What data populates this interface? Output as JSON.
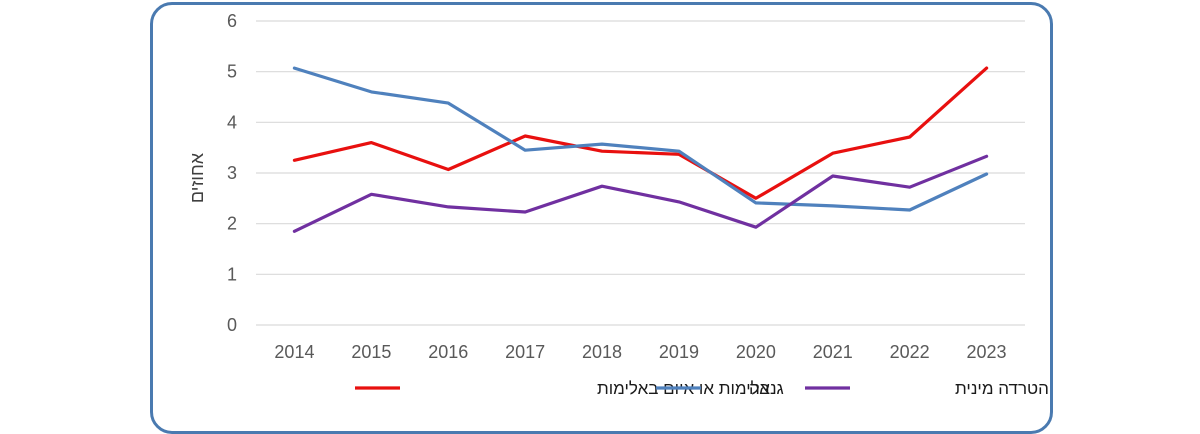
{
  "chart_data": {
    "type": "line",
    "categories": [
      "2014",
      "2015",
      "2016",
      "2017",
      "2018",
      "2019",
      "2020",
      "2021",
      "2022",
      "2023"
    ],
    "ylabel": "אחוזים",
    "xlabel": "",
    "ylim": [
      0,
      6
    ],
    "yticks": [
      "0",
      "1",
      "2",
      "3",
      "4",
      "5",
      "6"
    ],
    "grid": true,
    "legend_position": "bottom",
    "series": [
      {
        "name": "אלימות או איום באלימות",
        "color": "#e8100f",
        "values": [
          3.25,
          3.6,
          3.07,
          3.73,
          3.43,
          3.37,
          2.5,
          3.39,
          3.71,
          5.07
        ]
      },
      {
        "name": "גנבה",
        "color": "#4f81bd",
        "values": [
          5.07,
          4.6,
          4.38,
          3.45,
          3.57,
          3.43,
          2.41,
          2.35,
          2.27,
          2.98
        ]
      },
      {
        "name": "הטרדה מינית",
        "color": "#7030a0",
        "values": [
          1.85,
          2.58,
          2.33,
          2.23,
          2.74,
          2.43,
          1.93,
          2.94,
          2.72,
          3.33
        ]
      }
    ]
  }
}
